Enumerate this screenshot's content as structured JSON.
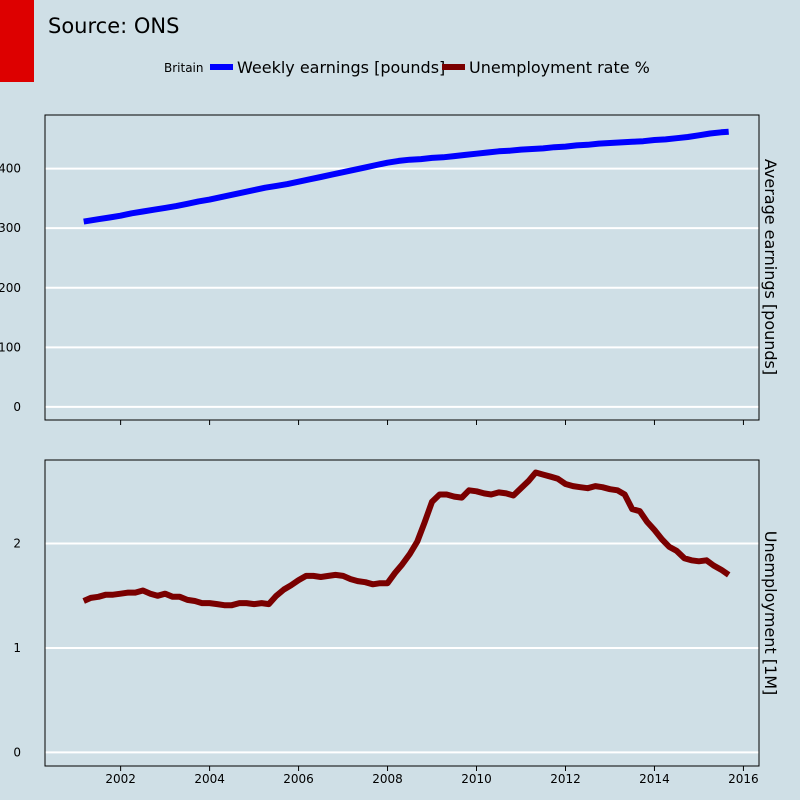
{
  "header": {
    "source": "Source: ONS",
    "accent_color": "#dd0000"
  },
  "colors": {
    "background": "#cfdfe6",
    "earnings": "#0000ff",
    "unemployment": "#7a0000",
    "grid": "#ffffff"
  },
  "chart_data": [
    {
      "type": "line",
      "ylabel": "Average earnings [pounds]",
      "xlim": [
        2000.3,
        2016.35
      ],
      "ylim": [
        -22,
        490
      ],
      "xticks": [
        2002,
        2004,
        2006,
        2008,
        2010,
        2012,
        2014,
        2016
      ],
      "yticks": [
        0,
        100,
        200,
        300,
        400
      ],
      "legend": {
        "title": "Britain",
        "placement": "top-center",
        "entries": [
          "Weekly earnings [pounds]",
          "Unemployment rate %"
        ]
      },
      "series": [
        {
          "name": "Weekly earnings [pounds]",
          "color": "#0000ff",
          "x": [
            2001.17,
            2001.5,
            2001.75,
            2002.0,
            2002.25,
            2002.5,
            2002.75,
            2003.0,
            2003.25,
            2003.5,
            2003.75,
            2004.0,
            2004.25,
            2004.5,
            2004.75,
            2005.0,
            2005.25,
            2005.5,
            2005.75,
            2006.0,
            2006.25,
            2006.5,
            2006.75,
            2007.0,
            2007.25,
            2007.5,
            2007.75,
            2008.0,
            2008.25,
            2008.5,
            2008.75,
            2009.0,
            2009.25,
            2009.5,
            2009.75,
            2010.0,
            2010.25,
            2010.5,
            2010.75,
            2011.0,
            2011.25,
            2011.5,
            2011.75,
            2012.0,
            2012.25,
            2012.5,
            2012.75,
            2013.0,
            2013.25,
            2013.5,
            2013.75,
            2014.0,
            2014.25,
            2014.5,
            2014.75,
            2015.0,
            2015.25,
            2015.5,
            2015.67
          ],
          "y": [
            311,
            315,
            318,
            321,
            325,
            328,
            331,
            334,
            337,
            341,
            345,
            348,
            352,
            356,
            360,
            364,
            368,
            371,
            374,
            378,
            382,
            386,
            390,
            394,
            398,
            402,
            406,
            410,
            413,
            415,
            416,
            418,
            419,
            421,
            423,
            425,
            427,
            429,
            430,
            432,
            433,
            434,
            436,
            437,
            439,
            440,
            442,
            443,
            444,
            445,
            446,
            448,
            449,
            451,
            453,
            456,
            459,
            461,
            462
          ]
        }
      ]
    },
    {
      "type": "line",
      "ylabel": "Unemployment [1M]",
      "xlim": [
        2000.3,
        2016.35
      ],
      "ylim": [
        -0.13,
        2.8
      ],
      "xticks": [
        2002,
        2004,
        2006,
        2008,
        2010,
        2012,
        2014,
        2016
      ],
      "yticks": [
        0,
        1,
        2
      ],
      "series": [
        {
          "name": "Unemployment rate %",
          "color": "#7a0000",
          "x": [
            2001.17,
            2001.33,
            2001.5,
            2001.67,
            2001.83,
            2002.0,
            2002.17,
            2002.33,
            2002.5,
            2002.67,
            2002.83,
            2003.0,
            2003.17,
            2003.33,
            2003.5,
            2003.67,
            2003.83,
            2004.0,
            2004.17,
            2004.33,
            2004.5,
            2004.67,
            2004.83,
            2005.0,
            2005.17,
            2005.33,
            2005.5,
            2005.67,
            2005.83,
            2006.0,
            2006.17,
            2006.33,
            2006.5,
            2006.67,
            2006.83,
            2007.0,
            2007.17,
            2007.33,
            2007.5,
            2007.67,
            2007.83,
            2008.0,
            2008.17,
            2008.33,
            2008.5,
            2008.67,
            2008.83,
            2009.0,
            2009.17,
            2009.33,
            2009.5,
            2009.67,
            2009.83,
            2010.0,
            2010.17,
            2010.33,
            2010.5,
            2010.67,
            2010.83,
            2011.0,
            2011.17,
            2011.33,
            2011.5,
            2011.67,
            2011.83,
            2012.0,
            2012.17,
            2012.33,
            2012.5,
            2012.67,
            2012.83,
            2013.0,
            2013.17,
            2013.33,
            2013.5,
            2013.67,
            2013.83,
            2014.0,
            2014.17,
            2014.33,
            2014.5,
            2014.67,
            2014.83,
            2015.0,
            2015.17,
            2015.33,
            2015.5,
            2015.67
          ],
          "y": [
            1.45,
            1.48,
            1.49,
            1.51,
            1.51,
            1.52,
            1.53,
            1.53,
            1.55,
            1.52,
            1.5,
            1.52,
            1.49,
            1.49,
            1.46,
            1.45,
            1.43,
            1.43,
            1.42,
            1.41,
            1.41,
            1.43,
            1.43,
            1.42,
            1.43,
            1.42,
            1.5,
            1.56,
            1.6,
            1.65,
            1.69,
            1.69,
            1.68,
            1.69,
            1.7,
            1.69,
            1.66,
            1.64,
            1.63,
            1.61,
            1.62,
            1.62,
            1.72,
            1.8,
            1.9,
            2.02,
            2.2,
            2.4,
            2.47,
            2.47,
            2.45,
            2.44,
            2.51,
            2.5,
            2.48,
            2.47,
            2.49,
            2.48,
            2.46,
            2.53,
            2.6,
            2.68,
            2.66,
            2.64,
            2.62,
            2.57,
            2.55,
            2.54,
            2.53,
            2.55,
            2.54,
            2.52,
            2.51,
            2.47,
            2.33,
            2.31,
            2.21,
            2.13,
            2.04,
            1.97,
            1.93,
            1.86,
            1.84,
            1.83,
            1.84,
            1.79,
            1.75,
            1.7
          ]
        }
      ]
    }
  ]
}
